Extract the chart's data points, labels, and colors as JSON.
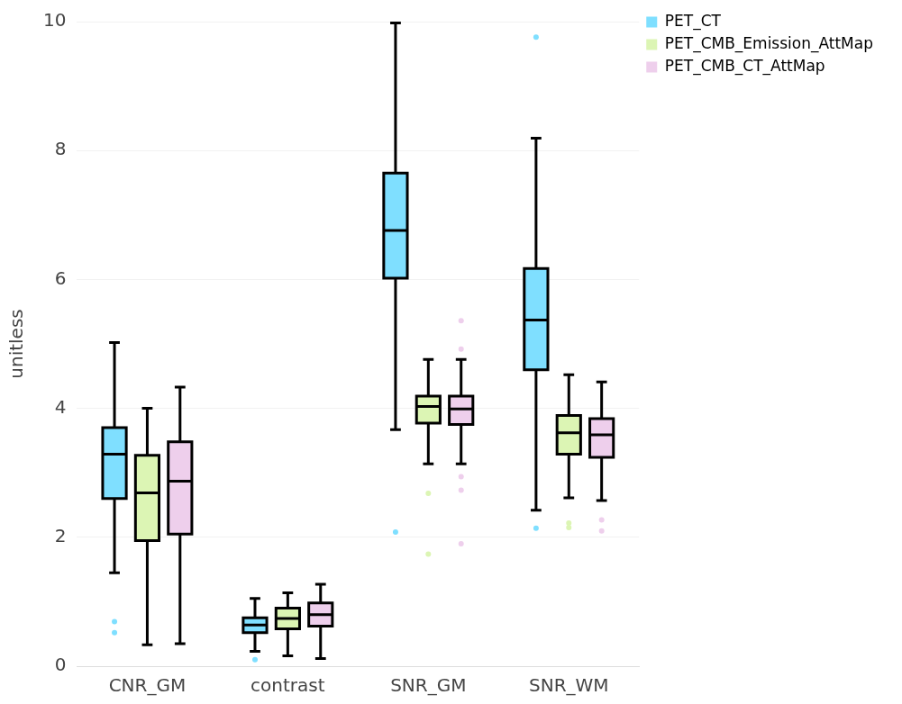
{
  "chart_data": {
    "type": "box",
    "ylabel": "unitless",
    "categories": [
      "CNR_GM",
      "contrast",
      "SNR_GM",
      "SNR_WM"
    ],
    "ylim": [
      0,
      10
    ],
    "yticks": [
      0,
      2,
      4,
      6,
      8,
      10
    ],
    "grid": "y",
    "legend": "top right",
    "series": [
      {
        "name": "PET_CT",
        "color": "#7fdfff",
        "boxes": [
          {
            "low": 1.45,
            "q1": 2.6,
            "median": 3.29,
            "q3": 3.7,
            "high": 5.02,
            "outliers": [
              0.69,
              0.52
            ]
          },
          {
            "low": 0.23,
            "q1": 0.52,
            "median": 0.64,
            "q3": 0.75,
            "high": 1.05,
            "outliers": [
              0.1
            ]
          },
          {
            "low": 3.67,
            "q1": 6.02,
            "median": 6.76,
            "q3": 7.65,
            "high": 9.98,
            "outliers": [
              2.08
            ]
          },
          {
            "low": 2.42,
            "q1": 4.6,
            "median": 5.37,
            "q3": 6.17,
            "high": 8.19,
            "outliers": [
              9.76,
              2.14
            ]
          }
        ]
      },
      {
        "name": "PET_CMB_Emission_AttMap",
        "color": "#dcf5b4",
        "boxes": [
          {
            "low": 0.33,
            "q1": 1.95,
            "median": 2.69,
            "q3": 3.27,
            "high": 4.0
          },
          {
            "low": 0.16,
            "q1": 0.58,
            "median": 0.74,
            "q3": 0.9,
            "high": 1.14
          },
          {
            "low": 3.14,
            "q1": 3.77,
            "median": 4.03,
            "q3": 4.19,
            "high": 4.76,
            "outliers": [
              2.68,
              1.74
            ]
          },
          {
            "low": 2.61,
            "q1": 3.29,
            "median": 3.62,
            "q3": 3.89,
            "high": 4.52,
            "outliers": [
              2.22,
              2.15
            ]
          }
        ]
      },
      {
        "name": "PET_CMB_CT_AttMap",
        "color": "#eecfec",
        "boxes": [
          {
            "low": 0.35,
            "q1": 2.05,
            "median": 2.87,
            "q3": 3.48,
            "high": 4.33
          },
          {
            "low": 0.12,
            "q1": 0.62,
            "median": 0.8,
            "q3": 0.98,
            "high": 1.27
          },
          {
            "low": 3.14,
            "q1": 3.75,
            "median": 3.99,
            "q3": 4.19,
            "high": 4.76,
            "outliers": [
              5.36,
              4.92,
              2.94,
              2.73,
              1.9
            ]
          },
          {
            "low": 2.57,
            "q1": 3.24,
            "median": 3.59,
            "q3": 3.84,
            "high": 4.41,
            "outliers": [
              2.27,
              2.1
            ]
          }
        ]
      }
    ]
  }
}
